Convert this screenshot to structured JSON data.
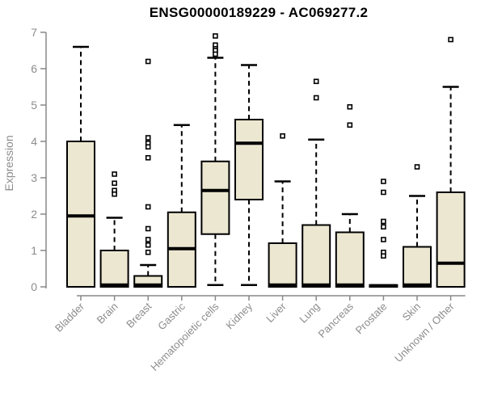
{
  "chart_data": {
    "type": "boxplot",
    "title": "ENSG00000189229 - AC069277.2",
    "ylabel": "Expression",
    "xlabel": "",
    "ylim": [
      0,
      7
    ],
    "yticks": [
      0,
      1,
      2,
      3,
      4,
      5,
      6,
      7
    ],
    "grid": false,
    "legend": "none",
    "categories": [
      "Bladder",
      "Brain",
      "Breast",
      "Gastric",
      "Hematopoietic cells",
      "Kidney",
      "Liver",
      "Lung",
      "Pancreas",
      "Prostate",
      "Skin",
      "Unknown / Other"
    ],
    "series": [
      {
        "name": "Bladder",
        "q1": 0,
        "median": 1.95,
        "q3": 4.0,
        "whisker_low": 0,
        "whisker_high": 6.6,
        "outliers": []
      },
      {
        "name": "Brain",
        "q1": 0,
        "median": 0.05,
        "q3": 1.0,
        "whisker_low": 0,
        "whisker_high": 1.9,
        "outliers": [
          3.1,
          2.85,
          2.65,
          2.55
        ]
      },
      {
        "name": "Breast",
        "q1": 0,
        "median": 0.05,
        "q3": 0.3,
        "whisker_low": 0,
        "whisker_high": 0.6,
        "outliers": [
          6.2,
          4.1,
          3.95,
          3.85,
          3.55,
          2.2,
          1.6,
          1.3,
          1.15,
          0.95
        ]
      },
      {
        "name": "Gastric",
        "q1": 0,
        "median": 1.05,
        "q3": 2.05,
        "whisker_low": 0,
        "whisker_high": 4.45,
        "outliers": []
      },
      {
        "name": "Hematopoietic cells",
        "q1": 1.45,
        "median": 2.65,
        "q3": 3.45,
        "whisker_low": 0.05,
        "whisker_high": 6.3,
        "outliers": [
          6.9,
          6.65,
          6.55,
          6.5,
          6.4
        ]
      },
      {
        "name": "Kidney",
        "q1": 2.4,
        "median": 3.95,
        "q3": 4.6,
        "whisker_low": 0.05,
        "whisker_high": 6.1,
        "outliers": []
      },
      {
        "name": "Liver",
        "q1": 0,
        "median": 0.05,
        "q3": 1.2,
        "whisker_low": 0,
        "whisker_high": 2.9,
        "outliers": [
          4.15
        ]
      },
      {
        "name": "Lung",
        "q1": 0,
        "median": 0.05,
        "q3": 1.7,
        "whisker_low": 0,
        "whisker_high": 4.05,
        "outliers": [
          5.65,
          5.2
        ]
      },
      {
        "name": "Pancreas",
        "q1": 0,
        "median": 0.05,
        "q3": 1.5,
        "whisker_low": 0,
        "whisker_high": 2.0,
        "outliers": [
          4.95,
          4.45
        ]
      },
      {
        "name": "Prostate",
        "q1": 0,
        "median": 0.03,
        "q3": 0.05,
        "whisker_low": 0,
        "whisker_high": 0.05,
        "outliers": [
          2.9,
          2.6,
          1.8,
          1.65,
          1.3,
          0.95,
          0.85
        ]
      },
      {
        "name": "Skin",
        "q1": 0,
        "median": 0.05,
        "q3": 1.1,
        "whisker_low": 0,
        "whisker_high": 2.5,
        "outliers": [
          3.3
        ]
      },
      {
        "name": "Unknown / Other",
        "q1": 0,
        "median": 0.65,
        "q3": 2.6,
        "whisker_low": 0,
        "whisker_high": 5.5,
        "outliers": [
          6.8
        ]
      }
    ]
  },
  "colors": {
    "box_fill": "#ece7d1",
    "box_border": "#000000",
    "median": "#000000",
    "whisker": "#000000",
    "outlier_stroke": "#000000",
    "outlier_fill": "#ffffff",
    "axis": "#898989",
    "tick_label": "#8c8c8c",
    "title": "#000000"
  }
}
